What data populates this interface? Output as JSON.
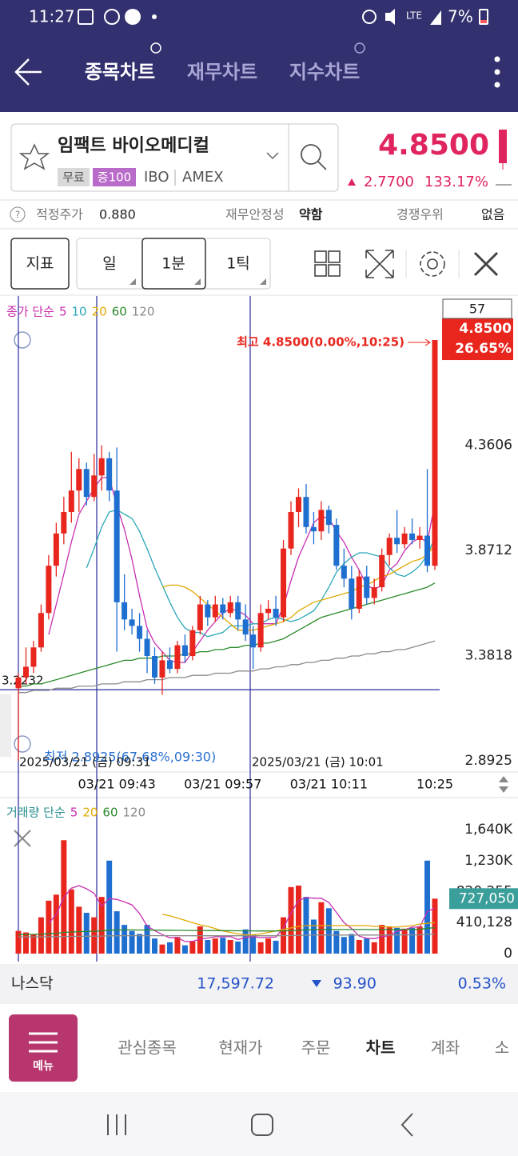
{
  "status": {
    "time": "11:27",
    "network": "LTE",
    "battery": "7%"
  },
  "header": {
    "tabs": [
      "종목차트",
      "재무차트",
      "지수차트"
    ]
  },
  "stock": {
    "name": "임팩트 바이오메디컬",
    "badges": [
      "무료",
      "증100"
    ],
    "ticker": "IBO",
    "exchange": "AMEX",
    "price": "4.8500",
    "change": "2.7700",
    "change_pct": "133.17%"
  },
  "info": [
    {
      "label": "적정주가",
      "value": "0.880"
    },
    {
      "label": "재무안정성",
      "value": "약함"
    },
    {
      "label": "경쟁우위",
      "value": "없음"
    }
  ],
  "toolbar": {
    "indicator": "지표",
    "periods": [
      "일",
      "1분",
      "1틱"
    ]
  },
  "price_chart": {
    "type": "candlestick",
    "legend_title": "종가 단순",
    "count": "57",
    "ylim": [
      2.8925,
      5.04
    ],
    "yticks": [
      4.3606,
      3.8712,
      3.3818,
      2.8925
    ],
    "categories": [
      null,
      null,
      null,
      null,
      null,
      null,
      null,
      null,
      null,
      null,
      null,
      null,
      null,
      "03/21 09:43",
      null,
      null,
      null,
      null,
      null,
      null,
      null,
      null,
      null,
      null,
      null,
      null,
      null,
      "03/21 09:57",
      null,
      null,
      null,
      null,
      null,
      null,
      null,
      null,
      null,
      null,
      null,
      null,
      null,
      "03/21 10:11",
      null,
      null,
      null,
      null,
      null,
      null,
      null,
      null,
      null,
      null,
      null,
      null,
      null,
      "10:25"
    ],
    "candles": [
      [
        3.23,
        3.3,
        2.8925,
        3.28
      ],
      [
        3.28,
        3.42,
        3.25,
        3.33
      ],
      [
        3.33,
        3.45,
        3.3,
        3.42
      ],
      [
        3.42,
        3.62,
        3.4,
        3.58
      ],
      [
        3.58,
        3.85,
        3.55,
        3.8
      ],
      [
        3.8,
        4.0,
        3.75,
        3.95
      ],
      [
        3.95,
        4.12,
        3.9,
        4.05
      ],
      [
        4.05,
        4.33,
        4.0,
        4.15
      ],
      [
        4.15,
        4.3,
        4.05,
        4.25
      ],
      [
        4.25,
        4.28,
        4.08,
        4.12
      ],
      [
        4.12,
        4.32,
        4.1,
        4.22
      ],
      [
        4.22,
        4.36,
        4.15,
        4.3
      ],
      [
        4.3,
        4.33,
        4.1,
        4.15
      ],
      [
        4.15,
        4.35,
        3.4,
        3.63
      ],
      [
        3.63,
        3.76,
        3.5,
        3.55
      ],
      [
        3.55,
        3.6,
        3.48,
        3.52
      ],
      [
        3.52,
        3.58,
        3.4,
        3.46
      ],
      [
        3.46,
        3.5,
        3.3,
        3.38
      ],
      [
        3.38,
        3.42,
        3.25,
        3.28
      ],
      [
        3.28,
        3.4,
        3.2,
        3.36
      ],
      [
        3.36,
        3.42,
        3.3,
        3.32
      ],
      [
        3.32,
        3.45,
        3.3,
        3.43
      ],
      [
        3.43,
        3.48,
        3.35,
        3.38
      ],
      [
        3.38,
        3.52,
        3.36,
        3.5
      ],
      [
        3.5,
        3.66,
        3.48,
        3.62
      ],
      [
        3.62,
        3.64,
        3.52,
        3.56
      ],
      [
        3.56,
        3.66,
        3.54,
        3.62
      ],
      [
        3.62,
        3.65,
        3.55,
        3.58
      ],
      [
        3.58,
        3.66,
        3.56,
        3.63
      ],
      [
        3.63,
        3.66,
        3.5,
        3.55
      ],
      [
        3.55,
        3.62,
        3.45,
        3.48
      ],
      [
        3.48,
        3.52,
        3.32,
        3.42
      ],
      [
        3.42,
        3.62,
        3.4,
        3.58
      ],
      [
        3.58,
        3.64,
        3.55,
        3.6
      ],
      [
        3.6,
        3.66,
        3.52,
        3.56
      ],
      [
        3.56,
        3.92,
        3.54,
        3.88
      ],
      [
        3.88,
        4.1,
        3.85,
        4.05
      ],
      [
        4.05,
        4.16,
        3.98,
        4.12
      ],
      [
        4.12,
        4.18,
        3.95,
        3.98
      ],
      [
        3.98,
        4.05,
        3.9,
        3.96
      ],
      [
        3.96,
        4.1,
        3.92,
        4.06
      ],
      [
        4.06,
        4.08,
        3.95,
        3.99
      ],
      [
        3.99,
        4.02,
        3.78,
        3.8
      ],
      [
        3.8,
        3.88,
        3.7,
        3.74
      ],
      [
        3.74,
        3.8,
        3.55,
        3.6
      ],
      [
        3.6,
        3.78,
        3.58,
        3.75
      ],
      [
        3.75,
        3.8,
        3.62,
        3.65
      ],
      [
        3.65,
        3.74,
        3.62,
        3.7
      ],
      [
        3.7,
        3.88,
        3.68,
        3.85
      ],
      [
        3.85,
        3.95,
        3.8,
        3.93
      ],
      [
        3.93,
        4.06,
        3.86,
        3.9
      ],
      [
        3.9,
        3.98,
        3.88,
        3.95
      ],
      [
        3.95,
        4.02,
        3.9,
        3.92
      ],
      [
        3.92,
        3.98,
        3.88,
        3.94
      ],
      [
        3.94,
        4.25,
        3.77,
        3.8
      ],
      [
        3.8,
        4.85,
        3.78,
        4.85
      ]
    ],
    "up_color": "#e8261e",
    "down_color": "#1f6fd1",
    "series": [
      {
        "name": 5,
        "color": "#c72fb0",
        "values": [
          null,
          null,
          null,
          null,
          3.48,
          3.62,
          3.76,
          3.91,
          4.04,
          4.1,
          4.16,
          4.21,
          4.21,
          4.08,
          3.97,
          3.83,
          3.66,
          3.51,
          3.44,
          3.4,
          3.36,
          3.35,
          3.35,
          3.4,
          3.45,
          3.5,
          3.54,
          3.58,
          3.6,
          3.59,
          3.57,
          3.53,
          3.53,
          3.53,
          3.53,
          3.61,
          3.73,
          3.84,
          3.92,
          4.0,
          4.03,
          4.02,
          3.96,
          3.91,
          3.84,
          3.78,
          3.71,
          3.69,
          3.71,
          3.78,
          3.81,
          3.87,
          3.91,
          3.93,
          3.91,
          4.09
        ]
      },
      {
        "name": 10,
        "color": "#2aa6b8",
        "values": [
          null,
          null,
          null,
          null,
          null,
          null,
          null,
          null,
          null,
          3.79,
          3.88,
          3.98,
          4.05,
          4.06,
          4.04,
          4.02,
          3.96,
          3.88,
          3.79,
          3.71,
          3.63,
          3.56,
          3.51,
          3.49,
          3.49,
          3.47,
          3.48,
          3.49,
          3.52,
          3.52,
          3.52,
          3.53,
          3.53,
          3.55,
          3.56,
          3.55,
          3.54,
          3.55,
          3.57,
          3.59,
          3.64,
          3.7,
          3.77,
          3.81,
          3.84,
          3.86,
          3.86,
          3.85,
          3.84,
          3.79,
          3.76,
          3.75,
          3.77,
          3.8,
          3.85,
          3.93
        ]
      },
      {
        "name": 20,
        "color": "#e0a800",
        "values": [
          null,
          null,
          null,
          null,
          null,
          null,
          null,
          null,
          null,
          null,
          null,
          null,
          null,
          null,
          null,
          null,
          null,
          null,
          null,
          3.7,
          3.71,
          3.71,
          3.7,
          3.68,
          3.65,
          3.62,
          3.59,
          3.56,
          3.53,
          3.5,
          3.5,
          3.5,
          3.51,
          3.52,
          3.53,
          3.54,
          3.56,
          3.59,
          3.61,
          3.63,
          3.64,
          3.65,
          3.66,
          3.67,
          3.68,
          3.7,
          3.71,
          3.73,
          3.75,
          3.76,
          3.78,
          3.8,
          3.82,
          3.83,
          3.85,
          3.9
        ]
      },
      {
        "name": 60,
        "color": "#2a8a2a",
        "values": [
          3.24,
          3.24,
          3.25,
          3.25,
          3.26,
          3.27,
          3.28,
          3.29,
          3.3,
          3.31,
          3.32,
          3.33,
          3.34,
          3.35,
          3.36,
          3.36,
          3.37,
          3.37,
          3.37,
          3.38,
          3.38,
          3.38,
          3.39,
          3.39,
          3.4,
          3.4,
          3.41,
          3.41,
          3.42,
          3.42,
          3.43,
          3.43,
          3.44,
          3.44,
          3.45,
          3.46,
          3.48,
          3.5,
          3.52,
          3.54,
          3.56,
          3.57,
          3.58,
          3.59,
          3.6,
          3.61,
          3.62,
          3.63,
          3.64,
          3.65,
          3.66,
          3.67,
          3.68,
          3.69,
          3.7,
          3.72
        ]
      },
      {
        "name": 120,
        "color": "#8a8a8a",
        "values": [
          3.21,
          3.21,
          3.22,
          3.22,
          3.22,
          3.23,
          3.23,
          3.23,
          3.24,
          3.24,
          3.24,
          3.25,
          3.25,
          3.25,
          3.26,
          3.26,
          3.26,
          3.27,
          3.27,
          3.27,
          3.28,
          3.28,
          3.28,
          3.29,
          3.29,
          3.29,
          3.3,
          3.3,
          3.3,
          3.31,
          3.31,
          3.31,
          3.32,
          3.32,
          3.33,
          3.33,
          3.34,
          3.34,
          3.35,
          3.35,
          3.36,
          3.36,
          3.37,
          3.37,
          3.38,
          3.38,
          3.39,
          3.39,
          3.4,
          3.4,
          3.41,
          3.41,
          3.42,
          3.43,
          3.44,
          3.45
        ]
      }
    ],
    "last_label": {
      "price": "4.8500",
      "pct": "26.65%"
    },
    "high_annotation": "최고 4.8500(0.00%,10:25)",
    "low_annotation": "최저 2.8925(67.68%,09:30)",
    "crosshair_price": 3.2232,
    "crosshair_dates": [
      "2025/03/21 (금) 09:31",
      "2025/03/21 (금) 10:01"
    ]
  },
  "volume_chart": {
    "type": "bar",
    "legend_title": "거래량 단순",
    "ylim": [
      0,
      2000000
    ],
    "yticks": [
      {
        "value": 1640000,
        "label": "1,640K"
      },
      {
        "value": 1230000,
        "label": "1,230K"
      },
      {
        "value": 820255,
        "label": "820,255"
      },
      {
        "value": 410128,
        "label": "410,128"
      },
      0
    ],
    "values": [
      300000,
      280000,
      250000,
      480000,
      700000,
      780000,
      1500000,
      850000,
      620000,
      540000,
      480000,
      750000,
      1230000,
      560000,
      380000,
      300000,
      260000,
      380000,
      200000,
      120000,
      150000,
      220000,
      110000,
      160000,
      360000,
      180000,
      200000,
      210000,
      180000,
      160000,
      320000,
      250000,
      150000,
      200000,
      170000,
      480000,
      880000,
      900000,
      750000,
      450000,
      680000,
      600000,
      300000,
      220000,
      260000,
      180000,
      200000,
      150000,
      380000,
      360000,
      340000,
      330000,
      340000,
      360000,
      1230000,
      727050
    ],
    "last_label": "727,050",
    "series": [
      {
        "name": 5,
        "color": "#c72fb0",
        "values": [
          null,
          null,
          null,
          null,
          400000,
          518000,
          742000,
          866000,
          898000,
          858000,
          798000,
          628000,
          728000,
          716000,
          684000,
          644000,
          530000,
          366000,
          304000,
          252000,
          208000,
          214000,
          160000,
          162000,
          192000,
          206000,
          222000,
          222000,
          226000,
          186000,
          214000,
          224000,
          212000,
          216000,
          218000,
          338000,
          536000,
          702000,
          742000,
          732000,
          732000,
          676000,
          544000,
          410000,
          332000,
          232000,
          202000,
          198000,
          222000,
          238000,
          294000,
          314000,
          350000,
          350000,
          554000,
          603000
        ]
      },
      {
        "name": 20,
        "color": "#e0a800",
        "values": [
          null,
          null,
          null,
          null,
          null,
          null,
          null,
          null,
          null,
          null,
          null,
          null,
          null,
          null,
          null,
          null,
          null,
          null,
          null,
          520000,
          500000,
          470000,
          440000,
          410000,
          380000,
          360000,
          330000,
          300000,
          280000,
          260000,
          250000,
          250000,
          260000,
          280000,
          300000,
          320000,
          340000,
          360000,
          370000,
          370000,
          370000,
          370000,
          370000,
          370000,
          370000,
          370000,
          370000,
          360000,
          360000,
          350000,
          350000,
          360000,
          370000,
          390000,
          400000,
          410000
        ]
      },
      {
        "name": 60,
        "color": "#2a8a2a",
        "values": [
          250000,
          252000,
          254000,
          258000,
          262000,
          268000,
          280000,
          286000,
          290000,
          293000,
          296000,
          300000,
          310000,
          312000,
          313000,
          313000,
          312000,
          312000,
          311000,
          310000,
          309000,
          308000,
          307000,
          306000,
          306000,
          305000,
          305000,
          304000,
          303000,
          302000,
          302000,
          301000,
          300000,
          300000,
          299000,
          300000,
          304000,
          310000,
          314000,
          316000,
          318000,
          319000,
          319000,
          319000,
          319000,
          318000,
          318000,
          317000,
          318000,
          318000,
          319000,
          320000,
          320000,
          321000,
          335000,
          342000
        ]
      },
      {
        "name": 120,
        "color": "#8a8a8a",
        "values": [
          220000,
          220000,
          221000,
          222000,
          223000,
          224000,
          226000,
          228000,
          229000,
          230000,
          231000,
          232000,
          235000,
          236000,
          237000,
          237000,
          237000,
          237000,
          237000,
          237000,
          237000,
          237000,
          236000,
          236000,
          236000,
          236000,
          236000,
          236000,
          236000,
          236000,
          236000,
          236000,
          236000,
          236000,
          236000,
          237000,
          239000,
          241000,
          243000,
          244000,
          245000,
          246000,
          246000,
          246000,
          246000,
          246000,
          246000,
          246000,
          247000,
          247000,
          247000,
          248000,
          248000,
          248000,
          255000,
          259000
        ]
      }
    ]
  },
  "index_bar": {
    "name": "나스닥",
    "value": "17,597.72",
    "change": "93.90",
    "change_pct": "0.53%"
  },
  "bottom_nav": {
    "menu": "메뉴",
    "items": [
      "관심종목",
      "현재가",
      "주문",
      "차트",
      "계좌",
      "소"
    ]
  }
}
